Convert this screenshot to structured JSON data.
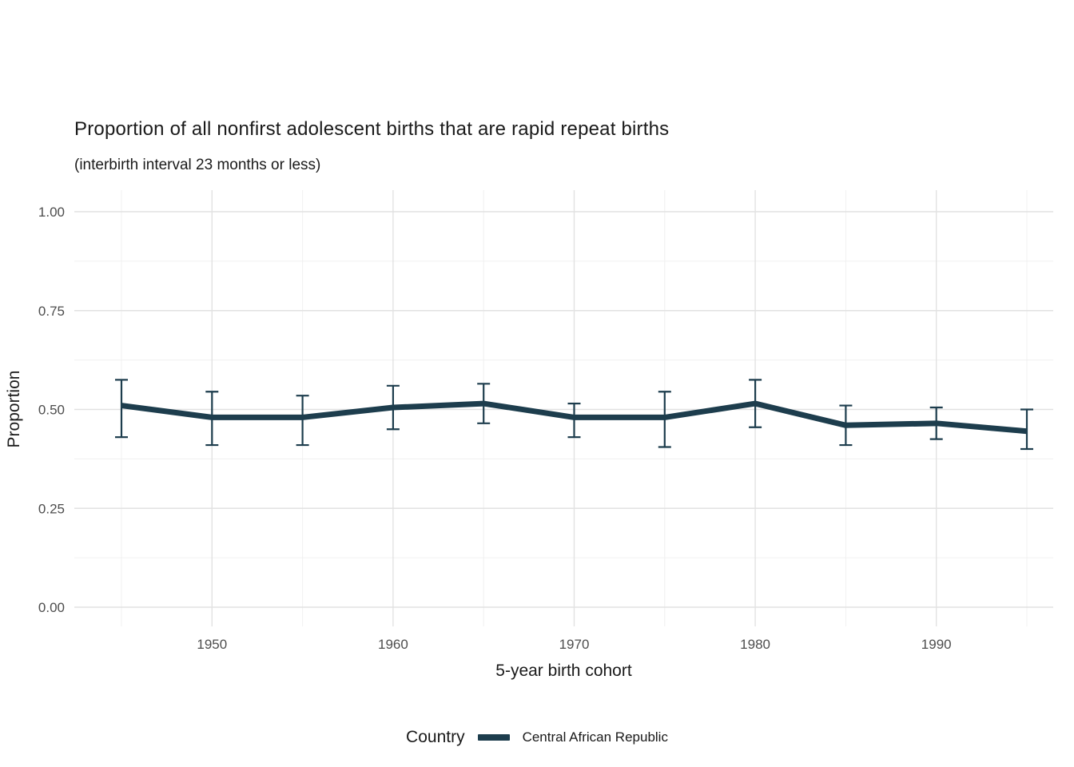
{
  "chart_data": {
    "type": "line",
    "title": "Proportion of all nonfirst adolescent births that are rapid repeat births",
    "subtitle": "(interbirth interval 23 months or less)",
    "xlabel": "5-year birth cohort",
    "ylabel": "Proportion",
    "x": [
      1945,
      1950,
      1955,
      1960,
      1965,
      1970,
      1975,
      1980,
      1985,
      1990,
      1995
    ],
    "series": [
      {
        "name": "Central African Republic",
        "values": [
          0.51,
          0.48,
          0.48,
          0.505,
          0.515,
          0.48,
          0.48,
          0.515,
          0.46,
          0.465,
          0.445
        ],
        "ci_low": [
          0.43,
          0.41,
          0.41,
          0.45,
          0.465,
          0.43,
          0.405,
          0.455,
          0.41,
          0.425,
          0.4
        ],
        "ci_high": [
          0.575,
          0.545,
          0.535,
          0.56,
          0.565,
          0.515,
          0.545,
          0.575,
          0.51,
          0.505,
          0.5
        ],
        "color": "#1d3d4d"
      }
    ],
    "xlim": [
      1942.4,
      1996.5
    ],
    "ylim": [
      0,
      1
    ],
    "yticks": [
      0,
      0.25,
      0.5,
      0.75,
      1
    ],
    "ytick_labels": [
      "0.00",
      "0.25",
      "0.50",
      "0.75",
      "1.00"
    ],
    "yticks_minor": [
      0.125,
      0.375,
      0.625,
      0.875
    ],
    "xticks": [
      1950,
      1960,
      1970,
      1980,
      1990
    ],
    "xtick_labels": [
      "1950",
      "1960",
      "1970",
      "1980",
      "1990"
    ],
    "xticks_minor": [
      1945,
      1955,
      1965,
      1975,
      1985,
      1995
    ],
    "grid": true,
    "legend": {
      "title": "Country",
      "position": "bottom"
    }
  },
  "colors": {
    "line": "#1d3d4d",
    "grid_major": "#e2e2e2",
    "grid_minor": "#f0f0f0",
    "background": "#ffffff",
    "title_text": "#1a1a1a",
    "tick_text": "#4d4d4d"
  }
}
